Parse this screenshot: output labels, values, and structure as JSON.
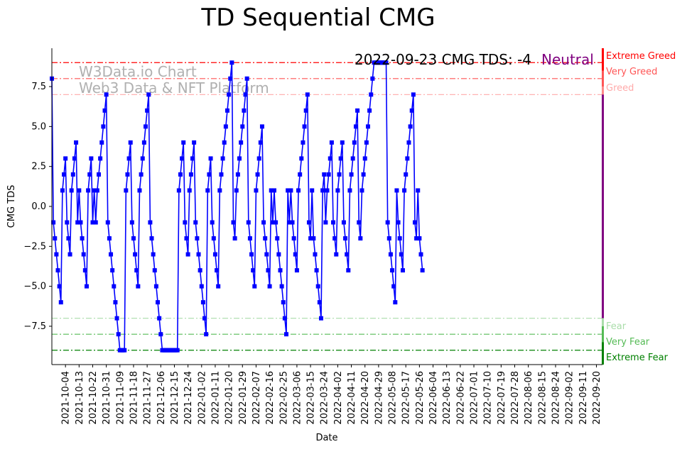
{
  "chart_data": {
    "type": "line",
    "title": "TD Sequential CMG",
    "xlabel": "Date",
    "ylabel": "CMG TDS",
    "ylim": [
      -9.9,
      9.9
    ],
    "yticks": [
      -7.5,
      -5.0,
      -2.5,
      0.0,
      2.5,
      5.0,
      7.5
    ],
    "ytick_labels": [
      "−7.5",
      "−5.0",
      "−2.5",
      "0.0",
      "2.5",
      "5.0",
      "7.5"
    ],
    "xlim": [
      "2021-09-25",
      "2022-09-24"
    ],
    "xticks": [
      "2021-10-04",
      "2021-10-13",
      "2021-10-22",
      "2021-10-31",
      "2021-11-09",
      "2021-11-18",
      "2021-11-27",
      "2021-12-06",
      "2021-12-15",
      "2021-12-24",
      "2022-01-02",
      "2022-01-11",
      "2022-01-20",
      "2022-01-29",
      "2022-02-07",
      "2022-02-16",
      "2022-02-25",
      "2022-03-06",
      "2022-03-15",
      "2022-03-24",
      "2022-04-02",
      "2022-04-11",
      "2022-04-20",
      "2022-04-29",
      "2022-05-08",
      "2022-05-17",
      "2022-05-26",
      "2022-06-04",
      "2022-06-13",
      "2022-06-22",
      "2022-07-01",
      "2022-07-10",
      "2022-07-19",
      "2022-07-28",
      "2022-08-06",
      "2022-08-15",
      "2022-08-24",
      "2022-09-02",
      "2022-09-11",
      "2022-09-20"
    ],
    "grid": false,
    "series": [
      {
        "start_date": "2021-09-25",
        "color": "#0000ff",
        "marker": "square",
        "values": [
          8,
          -1,
          -2,
          -3,
          -4,
          -5,
          -6,
          1,
          2,
          3,
          -1,
          -2,
          -3,
          1,
          2,
          3,
          4,
          -1,
          1,
          -1,
          -2,
          -3,
          -4,
          -5,
          1,
          2,
          3,
          -1,
          1,
          -1,
          1,
          2,
          3,
          4,
          5,
          6,
          7,
          -1,
          -2,
          -3,
          -4,
          -5,
          -6,
          -7,
          -8,
          -9,
          -9,
          -9,
          -9,
          1,
          2,
          3,
          4,
          -1,
          -2,
          -3,
          -4,
          -5,
          1,
          2,
          3,
          4,
          5,
          6,
          7,
          -1,
          -2,
          -3,
          -4,
          -5,
          -6,
          -7,
          -8,
          -9,
          -9,
          -9,
          -9,
          -9,
          -9,
          -9,
          -9,
          -9,
          -9,
          -9,
          1,
          2,
          3,
          4,
          -1,
          -2,
          -3,
          1,
          2,
          3,
          4,
          -1,
          -2,
          -3,
          -4,
          -5,
          -6,
          -7,
          -8,
          1,
          2,
          3,
          -1,
          -2,
          -3,
          -4,
          -5,
          1,
          2,
          3,
          4,
          5,
          6,
          7,
          8,
          9,
          -1,
          -2,
          1,
          2,
          3,
          4,
          5,
          6,
          7,
          8,
          -1,
          -2,
          -3,
          -4,
          -5,
          1,
          2,
          3,
          4,
          5,
          -1,
          -2,
          -3,
          -4,
          -5,
          1,
          -1,
          1,
          -1,
          -2,
          -3,
          -4,
          -5,
          -6,
          -7,
          -8,
          1,
          -1,
          1,
          -1,
          -2,
          -3,
          -4,
          1,
          2,
          3,
          4,
          5,
          6,
          7,
          -1,
          -2,
          1,
          -2,
          -3,
          -4,
          -5,
          -6,
          -7,
          1,
          2,
          -1,
          1,
          2,
          3,
          4,
          -1,
          -2,
          -3,
          1,
          2,
          3,
          4,
          -1,
          -2,
          -3,
          -4,
          1,
          2,
          3,
          4,
          5,
          6,
          -1,
          -2,
          1,
          2,
          3,
          4,
          5,
          6,
          7,
          8,
          9,
          9,
          9,
          9,
          9,
          9,
          9,
          9,
          9,
          -1,
          -2,
          -3,
          -4,
          -5,
          -6,
          1,
          -1,
          -2,
          -3,
          -4,
          1,
          2,
          3,
          4,
          5,
          6,
          7,
          -1,
          -2,
          1,
          -2,
          -3,
          -4
        ]
      }
    ],
    "reference_lines": [
      {
        "value": 9,
        "label": "Extreme Greed",
        "color": "#ff0000"
      },
      {
        "value": 8,
        "label": "Very Greed",
        "color": "#ff5555"
      },
      {
        "value": 7,
        "label": "Greed",
        "color": "#ffaaaa"
      },
      {
        "value": -7,
        "label": "Fear",
        "color": "#aaddaa"
      },
      {
        "value": -8,
        "label": "Very Fear",
        "color": "#55bb55"
      },
      {
        "value": -9,
        "label": "Extreme Fear",
        "color": "#008000"
      }
    ],
    "annotation": {
      "text": "2022-09-23 CMG TDS: -4",
      "status": "Neutral",
      "status_color": "#800080"
    },
    "watermark": [
      "W3Data.io Chart",
      "Web3 Data & NFT Platform"
    ]
  }
}
